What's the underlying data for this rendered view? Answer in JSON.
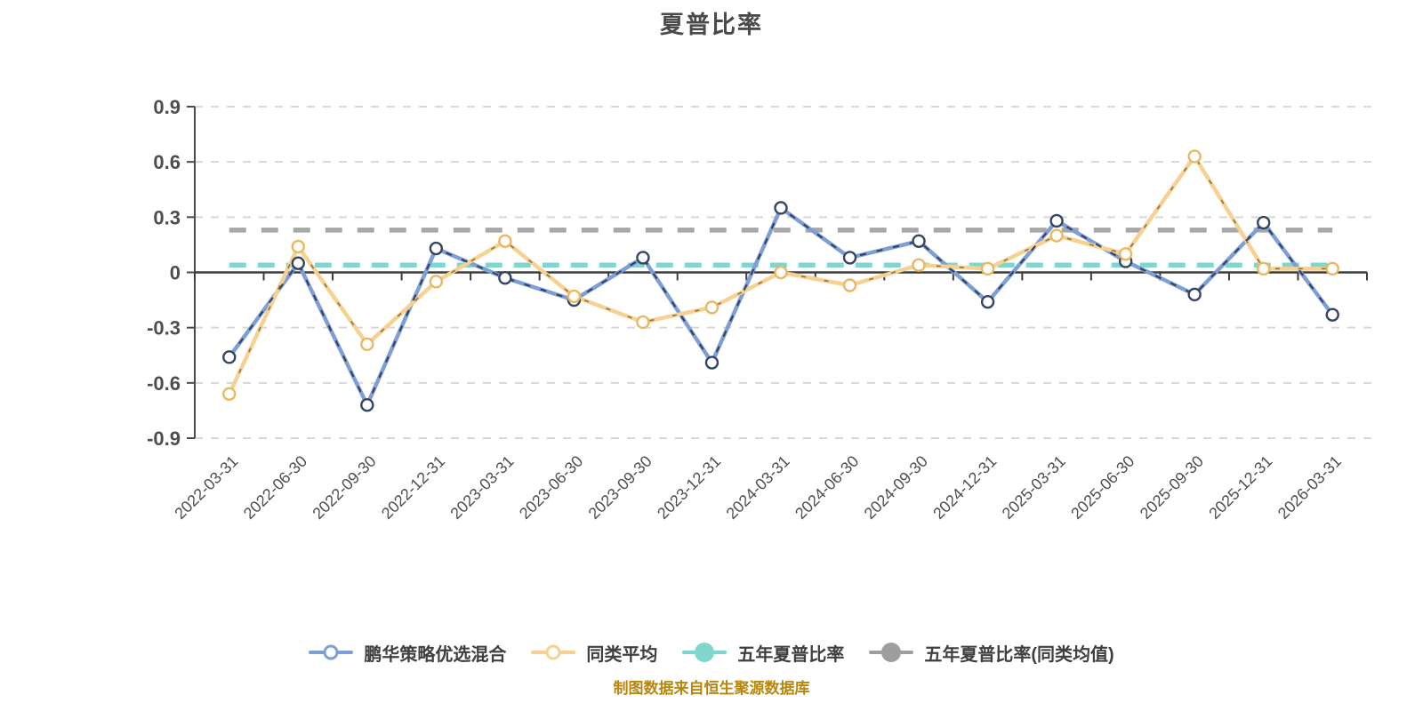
{
  "title": "夏普比率",
  "caption": "制图数据来自恒生聚源数据库",
  "legend": {
    "items": [
      {
        "label": "鹏华策略优选混合",
        "color": "#7e9ed6",
        "marker": "hollow"
      },
      {
        "label": "同类平均",
        "color": "#f7d191",
        "marker": "hollow"
      },
      {
        "label": "五年夏普比率",
        "color": "#7fd6ce",
        "marker": "filled"
      },
      {
        "label": "五年夏普比率(同类均值)",
        "color": "#9e9e9e",
        "marker": "filled"
      }
    ]
  },
  "chart_data": {
    "type": "line",
    "title": "夏普比率",
    "categories": [
      "2022-03-31",
      "2022-06-30",
      "2022-09-30",
      "2022-12-31",
      "2023-03-31",
      "2023-06-30",
      "2023-09-30",
      "2023-12-31",
      "2024-03-31",
      "2024-06-30",
      "2024-09-30",
      "2024-12-31",
      "2025-03-31",
      "2025-06-30",
      "2025-09-30",
      "2025-12-31",
      "2026-03-31"
    ],
    "series": [
      {
        "name": "鹏华策略优选混合",
        "color": "#7e9ed6",
        "overlay_color": "#2b3a58",
        "marker_ring": "#344663",
        "values": [
          -0.46,
          0.05,
          -0.72,
          0.13,
          -0.03,
          -0.15,
          0.08,
          -0.49,
          0.35,
          0.08,
          0.17,
          -0.16,
          0.28,
          0.06,
          -0.12,
          0.27,
          -0.23
        ]
      },
      {
        "name": "同类平均",
        "color": "#f7d191",
        "overlay_color": "#6b5a33",
        "marker_ring": "#eab863",
        "values": [
          -0.66,
          0.14,
          -0.39,
          -0.05,
          0.17,
          -0.13,
          -0.27,
          -0.19,
          0.0,
          -0.07,
          0.04,
          0.02,
          0.2,
          0.1,
          0.63,
          0.02,
          0.02
        ]
      }
    ],
    "hlines": [
      {
        "name": "五年夏普比率",
        "value": 0.04,
        "color": "#7fd6ce"
      },
      {
        "name": "五年夏普比率(同类均值)",
        "value": 0.23,
        "color": "#a8a8a8"
      }
    ],
    "xlabel": "",
    "ylabel": "",
    "ylim": [
      -0.9,
      0.9
    ],
    "yticks": [
      0.9,
      0.6,
      0.3,
      0,
      -0.3,
      -0.6,
      -0.9
    ],
    "grid": "dashed-horizontal",
    "legend_position": "bottom"
  }
}
